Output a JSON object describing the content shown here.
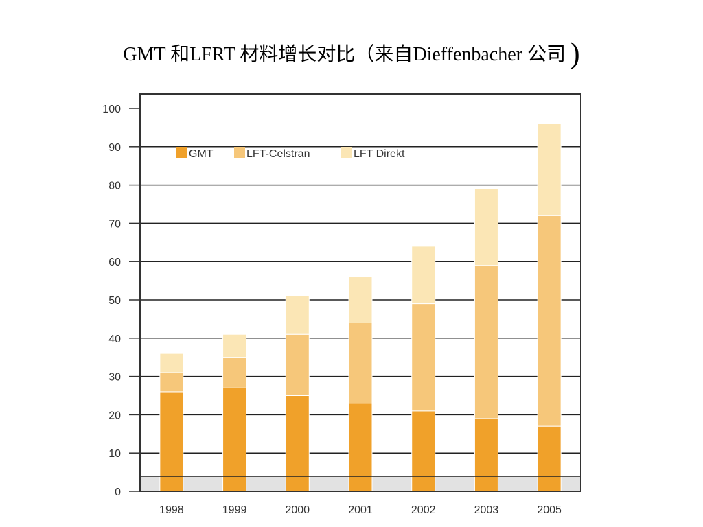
{
  "slide": {
    "title": "GMT 和LFRT 材料增长对比（来自Dieffenbacher 公司",
    "title_close": ")"
  },
  "chart_data": {
    "type": "bar",
    "stacked": true,
    "title": "",
    "xlabel": "",
    "ylabel": "",
    "categories": [
      "1998",
      "1999",
      "2000",
      "2001",
      "2002",
      "2003",
      "2005"
    ],
    "series": [
      {
        "name": "GMT",
        "color": "#F0A12A",
        "values": [
          26,
          27,
          25,
          23,
          21,
          19,
          17
        ]
      },
      {
        "name": "LFT-Celstran",
        "color": "#F6C77A",
        "values": [
          5,
          8,
          16,
          21,
          28,
          40,
          55
        ]
      },
      {
        "name": "LFT Direkt",
        "color": "#FBE6B5",
        "values": [
          5,
          6,
          10,
          12,
          15,
          20,
          24
        ]
      }
    ],
    "ylim": [
      0,
      100
    ],
    "yticks": [
      0,
      10,
      20,
      30,
      40,
      50,
      60,
      70,
      80,
      90,
      100
    ],
    "grid": true,
    "legend_position": "top-left"
  }
}
